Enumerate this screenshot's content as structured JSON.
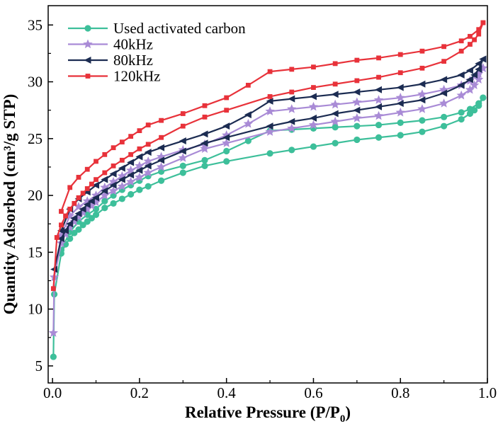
{
  "chart_data": {
    "type": "line",
    "title": "",
    "xlabel": "Relative Pressure (P/P",
    "xlabel_sub": "0",
    "xlabel_end": ")",
    "ylabel": "Quantity Adsorbed (cm³/g STP)",
    "xlim": [
      -0.01,
      1.0
    ],
    "ylim": [
      3.5,
      36.7
    ],
    "xticks": [
      "0.0",
      "0.2",
      "0.4",
      "0.6",
      "0.8",
      "1.0"
    ],
    "xtick_values": [
      0.0,
      0.2,
      0.4,
      0.6,
      0.8,
      1.0
    ],
    "yticks": [
      "5",
      "10",
      "15",
      "20",
      "25",
      "30",
      "35"
    ],
    "ytick_values": [
      5,
      10,
      15,
      20,
      25,
      30,
      35
    ],
    "grid": false,
    "legend_position": "top-left",
    "series": [
      {
        "name": "Used activated carbon",
        "color": "#3dbf9a",
        "marker": "circle",
        "adsorption": {
          "x": [
            0.002,
            0.004,
            0.02,
            0.03,
            0.04,
            0.05,
            0.06,
            0.07,
            0.08,
            0.09,
            0.1,
            0.12,
            0.14,
            0.16,
            0.18,
            0.2,
            0.22,
            0.25,
            0.3,
            0.35,
            0.4,
            0.5,
            0.55,
            0.6,
            0.65,
            0.7,
            0.75,
            0.8,
            0.85,
            0.9,
            0.94,
            0.96,
            0.97,
            0.98,
            0.99
          ],
          "y": [
            5.8,
            11.3,
            14.9,
            15.7,
            16.2,
            16.7,
            17.0,
            17.4,
            17.7,
            18.0,
            18.3,
            18.9,
            19.3,
            19.7,
            20.1,
            20.5,
            20.8,
            21.3,
            22.0,
            22.6,
            23.0,
            23.7,
            24.0,
            24.3,
            24.6,
            24.9,
            25.1,
            25.3,
            25.6,
            26.1,
            26.7,
            27.2,
            27.5,
            27.9,
            28.6
          ]
        },
        "desorption": {
          "x": [
            0.99,
            0.98,
            0.96,
            0.94,
            0.9,
            0.85,
            0.8,
            0.75,
            0.7,
            0.65,
            0.6,
            0.55,
            0.5,
            0.45,
            0.4,
            0.35,
            0.3,
            0.25,
            0.22,
            0.2,
            0.18,
            0.16,
            0.14,
            0.12,
            0.1,
            0.08,
            0.06,
            0.04,
            0.02
          ],
          "y": [
            28.6,
            28.1,
            27.6,
            27.3,
            26.9,
            26.6,
            26.4,
            26.2,
            26.1,
            26.0,
            25.9,
            25.8,
            25.7,
            24.8,
            23.9,
            23.1,
            22.6,
            22.1,
            21.7,
            21.3,
            20.9,
            20.5,
            20.0,
            19.5,
            18.8,
            18.3,
            17.7,
            16.8,
            15.2
          ]
        }
      },
      {
        "name": "40kHz",
        "color": "#a98bd6",
        "marker": "star",
        "adsorption": {
          "x": [
            0.002,
            0.004,
            0.02,
            0.03,
            0.04,
            0.05,
            0.06,
            0.07,
            0.08,
            0.09,
            0.1,
            0.12,
            0.14,
            0.16,
            0.18,
            0.2,
            0.22,
            0.25,
            0.3,
            0.35,
            0.4,
            0.5,
            0.55,
            0.6,
            0.65,
            0.7,
            0.75,
            0.8,
            0.85,
            0.9,
            0.94,
            0.96,
            0.97,
            0.98,
            0.99
          ],
          "y": [
            7.9,
            12.8,
            15.8,
            16.6,
            17.2,
            17.7,
            18.1,
            18.5,
            18.8,
            19.1,
            19.4,
            20.0,
            20.4,
            20.8,
            21.2,
            21.6,
            22.0,
            22.5,
            23.3,
            24.1,
            24.6,
            25.6,
            25.9,
            26.2,
            26.5,
            26.8,
            27.0,
            27.3,
            27.6,
            28.1,
            28.8,
            29.3,
            29.7,
            30.2,
            31.2
          ]
        },
        "desorption": {
          "x": [
            0.99,
            0.98,
            0.96,
            0.94,
            0.9,
            0.85,
            0.8,
            0.75,
            0.7,
            0.65,
            0.6,
            0.55,
            0.5,
            0.45,
            0.4,
            0.35,
            0.3,
            0.25,
            0.22,
            0.2,
            0.18,
            0.16,
            0.14,
            0.12,
            0.1,
            0.08,
            0.06,
            0.04,
            0.02
          ],
          "y": [
            31.2,
            30.7,
            30.1,
            29.7,
            29.3,
            28.9,
            28.6,
            28.4,
            28.2,
            28.0,
            27.8,
            27.6,
            27.4,
            26.3,
            25.3,
            24.5,
            24.0,
            23.4,
            23.0,
            22.6,
            22.2,
            21.7,
            21.2,
            20.7,
            20.0,
            19.5,
            19.0,
            18.2,
            16.5
          ]
        }
      },
      {
        "name": "80kHz",
        "color": "#1c2c52",
        "marker": "triangle-left",
        "adsorption": {
          "x": [
            0.004,
            0.02,
            0.03,
            0.04,
            0.05,
            0.06,
            0.07,
            0.08,
            0.09,
            0.1,
            0.12,
            0.14,
            0.16,
            0.18,
            0.2,
            0.22,
            0.25,
            0.3,
            0.35,
            0.4,
            0.5,
            0.55,
            0.6,
            0.65,
            0.7,
            0.75,
            0.8,
            0.85,
            0.9,
            0.94,
            0.96,
            0.97,
            0.98,
            0.99
          ],
          "y": [
            13.5,
            16.2,
            16.9,
            17.5,
            18.0,
            18.4,
            18.8,
            19.2,
            19.5,
            19.8,
            20.4,
            20.9,
            21.4,
            21.8,
            22.2,
            22.6,
            23.1,
            23.9,
            24.6,
            25.1,
            26.1,
            26.5,
            26.8,
            27.2,
            27.5,
            27.8,
            28.1,
            28.4,
            29.0,
            29.7,
            30.2,
            30.6,
            31.1,
            32.0
          ]
        },
        "desorption": {
          "x": [
            0.99,
            0.98,
            0.96,
            0.94,
            0.9,
            0.85,
            0.8,
            0.75,
            0.7,
            0.65,
            0.6,
            0.55,
            0.5,
            0.45,
            0.4,
            0.35,
            0.3,
            0.25,
            0.22,
            0.2,
            0.18,
            0.16,
            0.14,
            0.12,
            0.1,
            0.08,
            0.06,
            0.04,
            0.02
          ],
          "y": [
            32.0,
            31.6,
            31.0,
            30.6,
            30.2,
            29.8,
            29.5,
            29.3,
            29.1,
            28.9,
            28.7,
            28.5,
            28.3,
            27.1,
            26.1,
            25.4,
            24.8,
            24.2,
            23.8,
            23.4,
            22.9,
            22.4,
            21.9,
            21.4,
            20.9,
            20.3,
            19.7,
            18.8,
            16.9
          ]
        }
      },
      {
        "name": "120kHz",
        "color": "#e8323a",
        "marker": "square",
        "adsorption": {
          "x": [
            0.002,
            0.01,
            0.02,
            0.03,
            0.04,
            0.05,
            0.06,
            0.07,
            0.08,
            0.09,
            0.1,
            0.12,
            0.14,
            0.16,
            0.18,
            0.2,
            0.22,
            0.25,
            0.3,
            0.35,
            0.4,
            0.5,
            0.55,
            0.6,
            0.65,
            0.7,
            0.75,
            0.8,
            0.85,
            0.9,
            0.94,
            0.96,
            0.97,
            0.98,
            0.99
          ],
          "y": [
            11.8,
            16.3,
            17.4,
            18.2,
            18.8,
            19.3,
            19.8,
            20.2,
            20.6,
            21.0,
            21.4,
            22.0,
            22.6,
            23.1,
            23.6,
            24.1,
            24.5,
            25.1,
            26.1,
            26.9,
            27.5,
            28.7,
            29.1,
            29.5,
            29.8,
            30.1,
            30.4,
            30.8,
            31.2,
            31.8,
            32.7,
            33.3,
            33.7,
            34.2,
            35.2
          ]
        },
        "desorption": {
          "x": [
            0.99,
            0.98,
            0.96,
            0.94,
            0.9,
            0.85,
            0.8,
            0.75,
            0.7,
            0.65,
            0.6,
            0.55,
            0.5,
            0.45,
            0.4,
            0.35,
            0.3,
            0.25,
            0.22,
            0.2,
            0.18,
            0.16,
            0.14,
            0.12,
            0.1,
            0.08,
            0.06,
            0.04,
            0.02
          ],
          "y": [
            35.2,
            34.6,
            34.0,
            33.6,
            33.1,
            32.7,
            32.4,
            32.1,
            31.9,
            31.6,
            31.3,
            31.1,
            30.9,
            29.7,
            28.6,
            27.9,
            27.2,
            26.6,
            26.2,
            25.7,
            25.2,
            24.7,
            24.2,
            23.6,
            23.0,
            22.3,
            21.6,
            20.7,
            18.6
          ]
        }
      }
    ]
  }
}
